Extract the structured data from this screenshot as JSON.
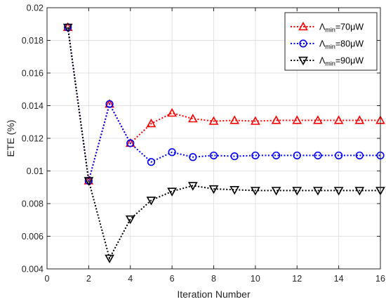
{
  "chart_data": {
    "type": "line",
    "title": "",
    "xlabel": "Iteration Number",
    "ylabel": "ETE (%)",
    "xlim": [
      0,
      16
    ],
    "ylim": [
      0.004,
      0.02
    ],
    "xticks": [
      "0",
      "2",
      "4",
      "6",
      "8",
      "10",
      "12",
      "14",
      "16"
    ],
    "yticks": [
      "0.004",
      "0.006",
      "0.008",
      "0.01",
      "0.012",
      "0.014",
      "0.016",
      "0.018",
      "0.02"
    ],
    "grid": true,
    "legend_position": "top-right",
    "x": [
      1,
      2,
      3,
      4,
      5,
      6,
      7,
      8,
      9,
      10,
      11,
      12,
      13,
      14,
      15,
      16
    ],
    "series": [
      {
        "name": "Λmin=70μW",
        "legend_symbol": "Λ",
        "legend_sub": "min",
        "legend_rest": "=70μW",
        "color": "#ff0000",
        "marker": "triangle-up",
        "values": [
          0.0188,
          0.0094,
          0.0141,
          0.0117,
          0.0129,
          0.01355,
          0.0132,
          0.01305,
          0.0131,
          0.01305,
          0.0131,
          0.0131,
          0.0131,
          0.0131,
          0.0131,
          0.0131
        ]
      },
      {
        "name": "Λmin=80μW",
        "legend_symbol": "Λ",
        "legend_sub": "min",
        "legend_rest": "=80μW",
        "color": "#0000ff",
        "marker": "circle",
        "values": [
          0.0188,
          0.0094,
          0.0141,
          0.0117,
          0.01055,
          0.01115,
          0.01085,
          0.01095,
          0.0109,
          0.01095,
          0.01095,
          0.01095,
          0.01095,
          0.01095,
          0.01095,
          0.01095
        ]
      },
      {
        "name": "Λmin=90μW",
        "legend_symbol": "Λ",
        "legend_sub": "min",
        "legend_rest": "=90μW",
        "color": "#000000",
        "marker": "triangle-down",
        "values": [
          0.0188,
          0.0094,
          0.00465,
          0.00705,
          0.0082,
          0.00875,
          0.0091,
          0.0089,
          0.00885,
          0.0088,
          0.0088,
          0.0088,
          0.0088,
          0.0088,
          0.0088,
          0.0088
        ]
      }
    ]
  }
}
